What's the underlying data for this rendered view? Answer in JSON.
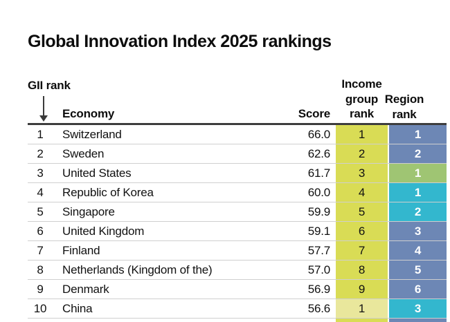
{
  "title": "Global Innovation Index 2025 rankings",
  "colors": {
    "income_rank_cell": "#d9dc55",
    "income_rank_cell_light": "#e9e79c",
    "region_blue": "#6d87b5",
    "region_green": "#9fc573",
    "region_teal": "#33b7ce",
    "header_rule": "#3d3d3d",
    "row_divider": "#cfcfcf"
  },
  "chart_data": {
    "type": "table",
    "title": "Global Innovation Index 2025 rankings",
    "columns": [
      "GII rank",
      "Economy",
      "Score",
      "Income group rank",
      "Region rank"
    ],
    "header": {
      "gii_rank": "GII rank",
      "economy": "Economy",
      "score": "Score",
      "income_lines": [
        "Income",
        "group",
        "rank"
      ],
      "region_lines": [
        "Region",
        "rank"
      ]
    },
    "rows": [
      {
        "gii_rank": "1",
        "economy": "Switzerland",
        "score": "66.0",
        "income_group_rank": "1",
        "region_rank": "1",
        "income_color": "#d9dc55",
        "region_color": "#6d87b5"
      },
      {
        "gii_rank": "2",
        "economy": "Sweden",
        "score": "62.6",
        "income_group_rank": "2",
        "region_rank": "2",
        "income_color": "#d9dc55",
        "region_color": "#6d87b5"
      },
      {
        "gii_rank": "3",
        "economy": "United States",
        "score": "61.7",
        "income_group_rank": "3",
        "region_rank": "1",
        "income_color": "#d9dc55",
        "region_color": "#9fc573"
      },
      {
        "gii_rank": "4",
        "economy": "Republic of Korea",
        "score": "60.0",
        "income_group_rank": "4",
        "region_rank": "1",
        "income_color": "#d9dc55",
        "region_color": "#33b7ce"
      },
      {
        "gii_rank": "5",
        "economy": "Singapore",
        "score": "59.9",
        "income_group_rank": "5",
        "region_rank": "2",
        "income_color": "#d9dc55",
        "region_color": "#33b7ce"
      },
      {
        "gii_rank": "6",
        "economy": "United Kingdom",
        "score": "59.1",
        "income_group_rank": "6",
        "region_rank": "3",
        "income_color": "#d9dc55",
        "region_color": "#6d87b5"
      },
      {
        "gii_rank": "7",
        "economy": "Finland",
        "score": "57.7",
        "income_group_rank": "7",
        "region_rank": "4",
        "income_color": "#d9dc55",
        "region_color": "#6d87b5"
      },
      {
        "gii_rank": "8",
        "economy": "Netherlands (Kingdom of the)",
        "score": "57.0",
        "income_group_rank": "8",
        "region_rank": "5",
        "income_color": "#d9dc55",
        "region_color": "#6d87b5"
      },
      {
        "gii_rank": "9",
        "economy": "Denmark",
        "score": "56.9",
        "income_group_rank": "9",
        "region_rank": "6",
        "income_color": "#d9dc55",
        "region_color": "#6d87b5"
      },
      {
        "gii_rank": "10",
        "economy": "China",
        "score": "56.6",
        "income_group_rank": "1",
        "region_rank": "3",
        "income_color": "#e9e79c",
        "region_color": "#33b7ce"
      }
    ],
    "truncated_next_row": {
      "income_color": "#d9dc55",
      "region_color": "#6d87b5"
    }
  }
}
